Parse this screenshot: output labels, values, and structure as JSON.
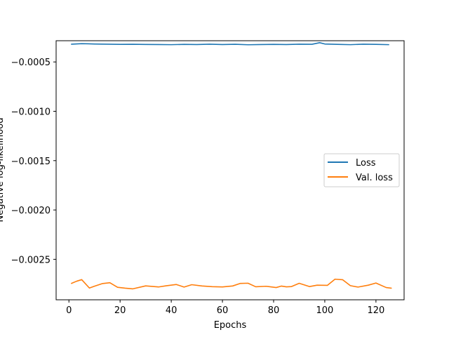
{
  "chart_data": {
    "type": "line",
    "title": "",
    "xlabel": "Epochs",
    "ylabel": "Negative log-likelihood",
    "xlim": [
      -5,
      131
    ],
    "ylim": [
      -0.00291,
      -0.000285
    ],
    "xticks": [
      0,
      20,
      40,
      60,
      80,
      100,
      120
    ],
    "xtick_labels": [
      "0",
      "20",
      "40",
      "60",
      "80",
      "100",
      "120"
    ],
    "yticks": [
      -0.0005,
      -0.001,
      -0.0015,
      -0.002,
      -0.0025
    ],
    "ytick_labels": [
      "−0.0005",
      "−0.0010",
      "−0.0015",
      "−0.0020",
      "−0.0025"
    ],
    "grid": false,
    "legend_position": "center-right",
    "series": [
      {
        "name": "Loss",
        "color": "#1f77b4",
        "x": [
          1,
          5,
          10,
          15,
          20,
          25,
          30,
          35,
          40,
          45,
          50,
          55,
          60,
          65,
          70,
          75,
          80,
          85,
          90,
          95,
          98,
          100,
          105,
          110,
          115,
          120,
          125
        ],
        "y": [
          -0.00032,
          -0.000315,
          -0.000318,
          -0.00032,
          -0.000322,
          -0.000321,
          -0.000323,
          -0.000324,
          -0.000325,
          -0.000322,
          -0.000324,
          -0.00032,
          -0.000324,
          -0.000321,
          -0.000326,
          -0.000324,
          -0.000322,
          -0.000324,
          -0.00032,
          -0.000321,
          -0.000305,
          -0.000318,
          -0.000322,
          -0.000325,
          -0.00032,
          -0.000322,
          -0.000325
        ]
      },
      {
        "name": "Val. loss",
        "color": "#ff7f0e",
        "x": [
          1,
          3,
          5,
          8,
          10,
          13,
          16,
          19,
          22,
          25,
          30,
          35,
          38,
          42,
          45,
          48,
          52,
          56,
          60,
          64,
          67,
          70,
          73,
          77,
          81,
          83,
          85,
          87,
          90,
          94,
          97,
          101,
          104,
          107,
          110,
          113,
          117,
          120,
          124,
          126
        ],
        "y": [
          -0.002744,
          -0.002722,
          -0.002706,
          -0.002791,
          -0.002772,
          -0.002746,
          -0.002737,
          -0.002783,
          -0.002792,
          -0.002799,
          -0.002769,
          -0.00278,
          -0.002768,
          -0.002755,
          -0.002781,
          -0.002757,
          -0.00277,
          -0.002777,
          -0.00278,
          -0.00277,
          -0.002744,
          -0.002742,
          -0.002778,
          -0.002773,
          -0.002786,
          -0.002771,
          -0.002779,
          -0.002776,
          -0.002743,
          -0.002776,
          -0.002762,
          -0.002764,
          -0.002701,
          -0.002707,
          -0.002767,
          -0.002781,
          -0.002762,
          -0.00274,
          -0.002786,
          -0.002792
        ]
      }
    ]
  }
}
